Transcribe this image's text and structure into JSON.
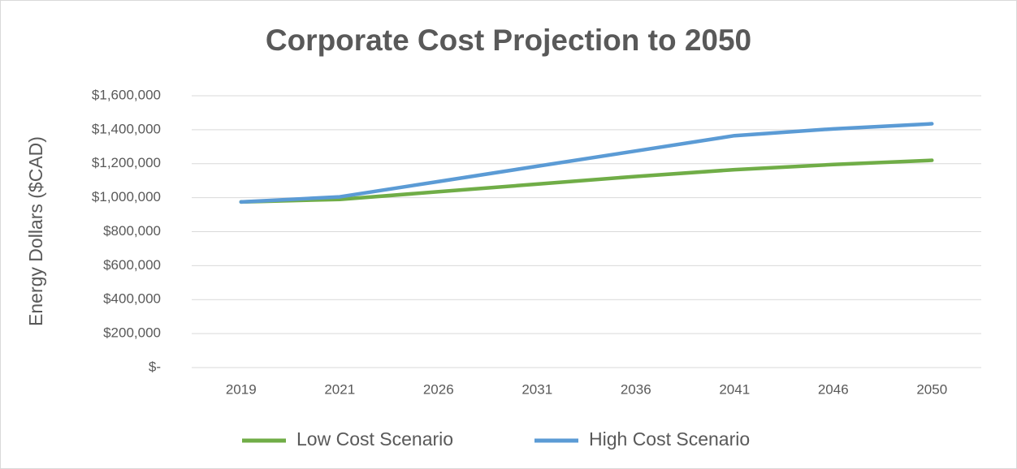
{
  "chart_data": {
    "type": "line",
    "title": "Corporate Cost Projection to 2050",
    "y_label": "Energy Dollars ($CAD)",
    "categories": [
      "2019",
      "2021",
      "2026",
      "2031",
      "2036",
      "2041",
      "2046",
      "2050"
    ],
    "series": [
      {
        "name": "Low Cost Scenario",
        "color": "#70ad47",
        "values": [
          975000,
          990000,
          1035000,
          1080000,
          1125000,
          1165000,
          1195000,
          1220000
        ]
      },
      {
        "name": "High Cost Scenario",
        "color": "#5b9bd5",
        "values": [
          975000,
          1005000,
          1095000,
          1185000,
          1275000,
          1365000,
          1405000,
          1435000
        ]
      }
    ],
    "ylim": [
      0,
      1600000
    ],
    "yticks": [
      {
        "value": 0,
        "label": "$-"
      },
      {
        "value": 200000,
        "label": "$200,000"
      },
      {
        "value": 400000,
        "label": "$400,000"
      },
      {
        "value": 600000,
        "label": "$600,000"
      },
      {
        "value": 800000,
        "label": "$800,000"
      },
      {
        "value": 1000000,
        "label": "$1,000,000"
      },
      {
        "value": 1200000,
        "label": "$1,200,000"
      },
      {
        "value": 1400000,
        "label": "$1,400,000"
      },
      {
        "value": 1600000,
        "label": "$1,600,000"
      }
    ],
    "grid": true,
    "legend": "bottom"
  }
}
